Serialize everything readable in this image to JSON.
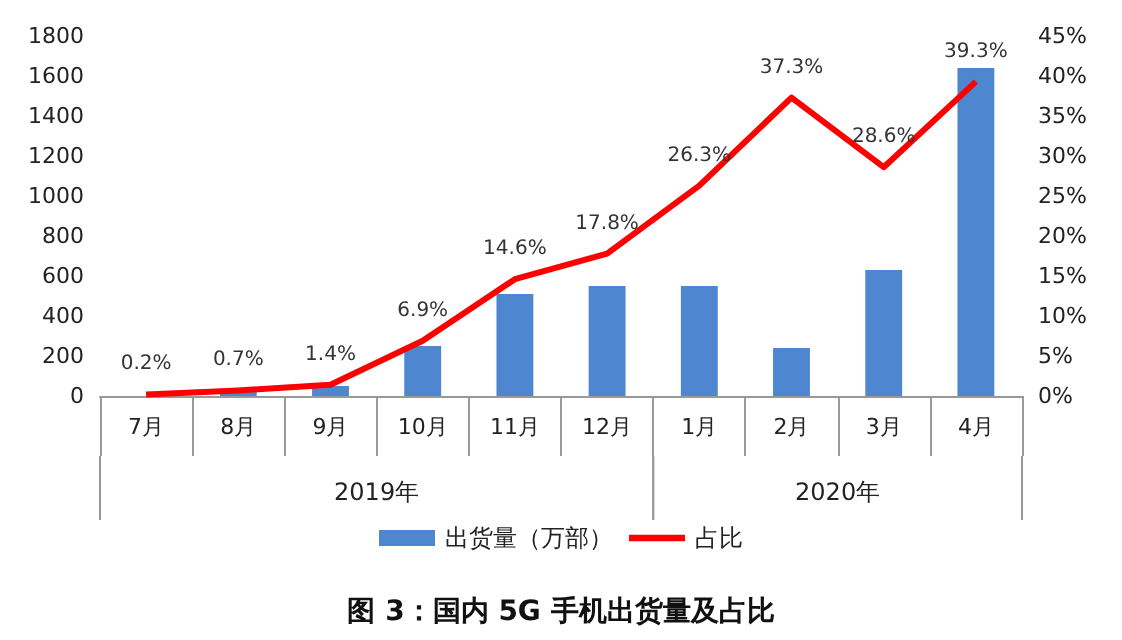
{
  "chart_data": {
    "type": "bar",
    "title": "图 3：国内 5G 手机出货量及占比",
    "categories": [
      "7月",
      "8月",
      "9月",
      "10月",
      "11月",
      "12月",
      "1月",
      "2月",
      "3月",
      "4月"
    ],
    "series": [
      {
        "name": "出货量（万部）",
        "color": "#4f86d0",
        "values": [
          0,
          20,
          50,
          250,
          510,
          550,
          550,
          240,
          630,
          1640
        ]
      },
      {
        "name": "占比",
        "type": "line",
        "axis": "y2",
        "color": "#ff0000",
        "values": [
          0.2,
          0.7,
          1.4,
          6.9,
          14.6,
          17.8,
          26.3,
          37.3,
          28.6,
          39.3
        ],
        "value_labels": [
          "0.2%",
          "0.7%",
          "1.4%",
          "6.9%",
          "14.6%",
          "17.8%",
          "26.3%",
          "37.3%",
          "28.6%",
          "39.3%"
        ]
      }
    ],
    "ylim": [
      0,
      1800
    ],
    "yticks": [
      0,
      200,
      400,
      600,
      800,
      1000,
      1200,
      1400,
      1600,
      1800
    ],
    "y2lim": [
      0,
      45
    ],
    "y2ticks": [
      {
        "value": 0,
        "label": "0%"
      },
      {
        "value": 5,
        "label": "5%"
      },
      {
        "value": 10,
        "label": "10%"
      },
      {
        "value": 15,
        "label": "15%"
      },
      {
        "value": 20,
        "label": "20%"
      },
      {
        "value": 25,
        "label": "25%"
      },
      {
        "value": 30,
        "label": "30%"
      },
      {
        "value": 35,
        "label": "35%"
      },
      {
        "value": 40,
        "label": "40%"
      },
      {
        "value": 45,
        "label": "45%"
      }
    ],
    "annotations": [
      "2019年",
      "2020年"
    ],
    "legend": "bottom",
    "grid": false,
    "marker": "none",
    "line_style": "solid"
  }
}
